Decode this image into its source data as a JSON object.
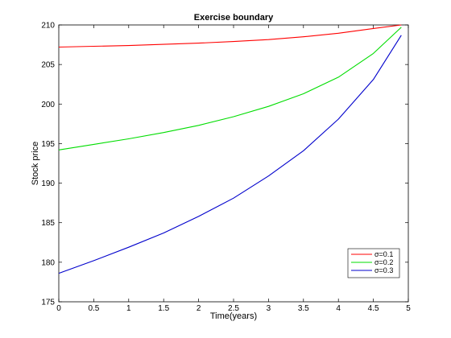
{
  "chart_data": {
    "type": "line",
    "title": "Exercise boundary",
    "xlabel": "Time(years)",
    "ylabel": "Stock price",
    "xlim": [
      0,
      5
    ],
    "ylim": [
      175,
      210
    ],
    "xticks": [
      0,
      0.5,
      1,
      1.5,
      2,
      2.5,
      3,
      3.5,
      4,
      4.5,
      5
    ],
    "xtick_labels": [
      "0",
      "0.5",
      "1",
      "1.5",
      "2",
      "2.5",
      "3",
      "3.5",
      "4",
      "4.5",
      "5"
    ],
    "yticks": [
      175,
      180,
      185,
      190,
      195,
      200,
      205,
      210
    ],
    "ytick_labels": [
      "175",
      "180",
      "185",
      "190",
      "195",
      "200",
      "205",
      "210"
    ],
    "grid": false,
    "legend_position": "bottom-right",
    "x": [
      0,
      0.5,
      1,
      1.5,
      2,
      2.5,
      3,
      3.5,
      4,
      4.5,
      4.9
    ],
    "series": [
      {
        "name": "σ=0.1",
        "color": "#ff0000",
        "values": [
          207.2,
          207.3,
          207.4,
          207.55,
          207.7,
          207.9,
          208.15,
          208.5,
          208.95,
          209.55,
          210.0
        ]
      },
      {
        "name": "σ=0.2",
        "color": "#00dd00",
        "values": [
          194.2,
          194.9,
          195.6,
          196.4,
          197.3,
          198.4,
          199.7,
          201.3,
          203.4,
          206.4,
          209.7
        ]
      },
      {
        "name": "σ=0.3",
        "color": "#0000cc",
        "values": [
          178.6,
          180.2,
          181.9,
          183.7,
          185.8,
          188.1,
          190.9,
          194.1,
          198.1,
          203.1,
          208.7
        ]
      }
    ]
  }
}
